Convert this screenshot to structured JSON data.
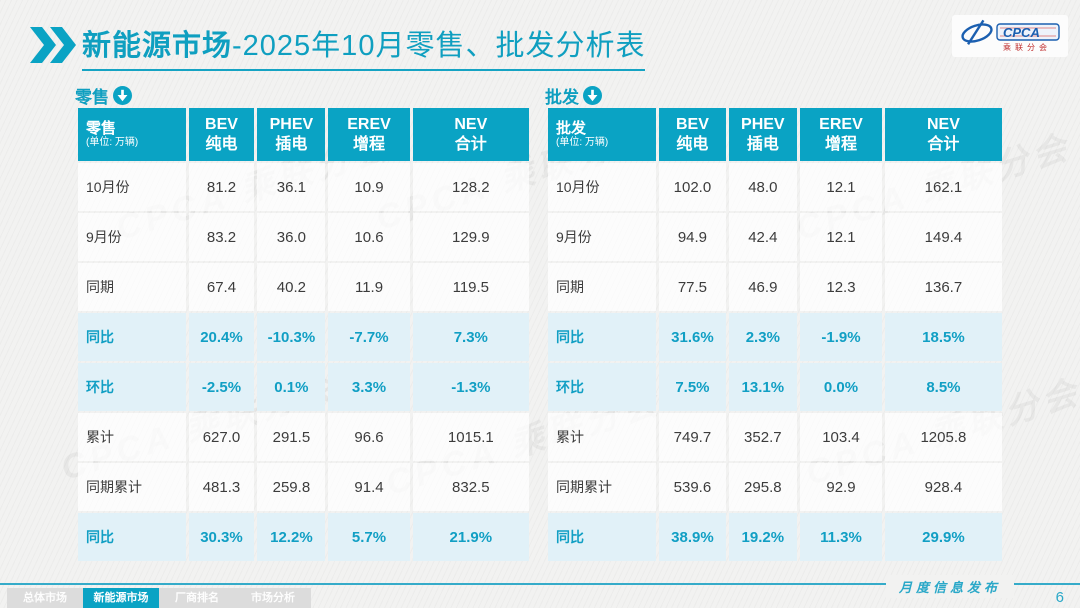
{
  "colors": {
    "accent": "#0aa3c4",
    "highlight_bg": "#e1f1f8",
    "logo_blue": "#1b5fb0",
    "logo_red": "#c03030"
  },
  "header": {
    "title_bold": "新能源市场",
    "title_rest": "-2025年10月零售、批发分析表",
    "logo": {
      "text": "CPCA",
      "subtext": "乘联分会"
    }
  },
  "tables": [
    {
      "label": "零售",
      "unit_label": "零售",
      "unit_note": "(单位: 万辆)",
      "columns": [
        {
          "en": "BEV",
          "zh": "纯电"
        },
        {
          "en": "PHEV",
          "zh": "插电"
        },
        {
          "en": "EREV",
          "zh": "增程"
        },
        {
          "en": "NEV",
          "zh": "合计"
        }
      ],
      "rows": [
        {
          "label": "10月份",
          "values": [
            "81.2",
            "36.1",
            "10.9",
            "128.2"
          ],
          "highlight": false
        },
        {
          "label": "9月份",
          "values": [
            "83.2",
            "36.0",
            "10.6",
            "129.9"
          ],
          "highlight": false
        },
        {
          "label": "同期",
          "values": [
            "67.4",
            "40.2",
            "11.9",
            "119.5"
          ],
          "highlight": false
        },
        {
          "label": "同比",
          "values": [
            "20.4%",
            "-10.3%",
            "-7.7%",
            "7.3%"
          ],
          "highlight": true
        },
        {
          "label": "环比",
          "values": [
            "-2.5%",
            "0.1%",
            "3.3%",
            "-1.3%"
          ],
          "highlight": true
        },
        {
          "label": "累计",
          "values": [
            "627.0",
            "291.5",
            "96.6",
            "1015.1"
          ],
          "highlight": false
        },
        {
          "label": "同期累计",
          "values": [
            "481.3",
            "259.8",
            "91.4",
            "832.5"
          ],
          "highlight": false
        },
        {
          "label": "同比",
          "values": [
            "30.3%",
            "12.2%",
            "5.7%",
            "21.9%"
          ],
          "highlight": true
        }
      ]
    },
    {
      "label": "批发",
      "unit_label": "批发",
      "unit_note": "(单位: 万辆)",
      "columns": [
        {
          "en": "BEV",
          "zh": "纯电"
        },
        {
          "en": "PHEV",
          "zh": "插电"
        },
        {
          "en": "EREV",
          "zh": "增程"
        },
        {
          "en": "NEV",
          "zh": "合计"
        }
      ],
      "rows": [
        {
          "label": "10月份",
          "values": [
            "102.0",
            "48.0",
            "12.1",
            "162.1"
          ],
          "highlight": false
        },
        {
          "label": "9月份",
          "values": [
            "94.9",
            "42.4",
            "12.1",
            "149.4"
          ],
          "highlight": false
        },
        {
          "label": "同期",
          "values": [
            "77.5",
            "46.9",
            "12.3",
            "136.7"
          ],
          "highlight": false
        },
        {
          "label": "同比",
          "values": [
            "31.6%",
            "2.3%",
            "-1.9%",
            "18.5%"
          ],
          "highlight": true
        },
        {
          "label": "环比",
          "values": [
            "7.5%",
            "13.1%",
            "0.0%",
            "8.5%"
          ],
          "highlight": true
        },
        {
          "label": "累计",
          "values": [
            "749.7",
            "352.7",
            "103.4",
            "1205.8"
          ],
          "highlight": false
        },
        {
          "label": "同期累计",
          "values": [
            "539.6",
            "295.8",
            "92.9",
            "928.4"
          ],
          "highlight": false
        },
        {
          "label": "同比",
          "values": [
            "38.9%",
            "19.2%",
            "11.3%",
            "29.9%"
          ],
          "highlight": true
        }
      ]
    }
  ],
  "footer": {
    "caption": "月度信息发布",
    "page_number": "6",
    "tabs": [
      {
        "label": "总体市场",
        "active": false
      },
      {
        "label": "新能源市场",
        "active": true
      },
      {
        "label": "厂商排名",
        "active": false
      },
      {
        "label": "市场分析",
        "active": false
      }
    ]
  },
  "watermark": "CPCA 乘联分会"
}
